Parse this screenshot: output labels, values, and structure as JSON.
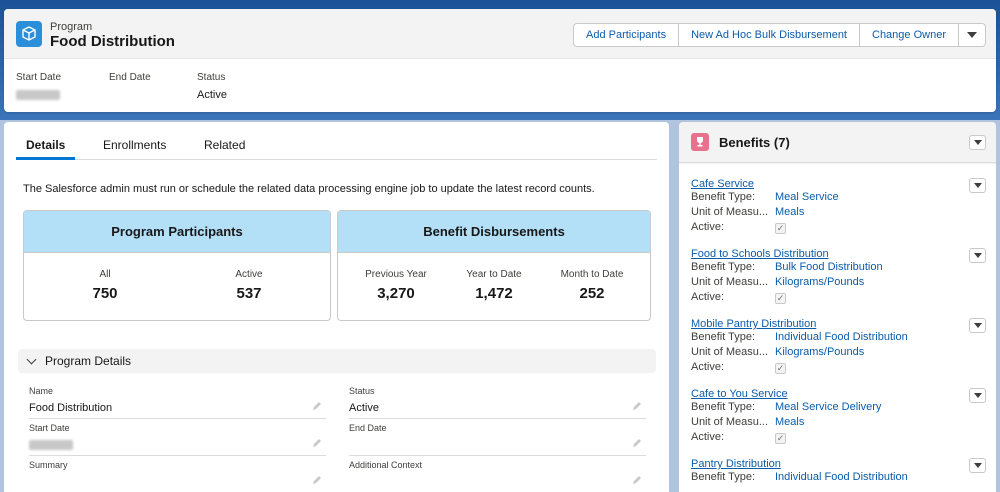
{
  "header": {
    "object_type": "Program",
    "record_name": "Food Distribution",
    "actions": [
      "Add Participants",
      "New Ad Hoc Bulk Disbursement",
      "Change Owner"
    ],
    "highlights": [
      {
        "label": "Start Date",
        "value": ""
      },
      {
        "label": "End Date",
        "value": ""
      },
      {
        "label": "Status",
        "value": "Active"
      }
    ]
  },
  "tabs": [
    "Details",
    "Enrollments",
    "Related"
  ],
  "notice": "The Salesforce admin must run or schedule the related data processing engine job to update the latest record counts.",
  "participants": {
    "title": "Program Participants",
    "stats": [
      {
        "label": "All",
        "value": "750"
      },
      {
        "label": "Active",
        "value": "537"
      }
    ]
  },
  "disbursements": {
    "title": "Benefit Disbursements",
    "stats": [
      {
        "label": "Previous Year",
        "value": "3,270"
      },
      {
        "label": "Year to Date",
        "value": "1,472"
      },
      {
        "label": "Month to Date",
        "value": "252"
      }
    ]
  },
  "details": {
    "section_title": "Program Details",
    "fields": [
      {
        "label": "Name",
        "value": "Food Distribution"
      },
      {
        "label": "Status",
        "value": "Active"
      },
      {
        "label": "Start Date",
        "value": ""
      },
      {
        "label": "End Date",
        "value": ""
      },
      {
        "label": "Summary",
        "value": ""
      },
      {
        "label": "Additional Context",
        "value": ""
      }
    ]
  },
  "benefits": {
    "title": "Benefits (7)",
    "labels": {
      "type": "Benefit Type:",
      "unit": "Unit of Measu...",
      "active": "Active:"
    },
    "items": [
      {
        "name": "Cafe Service",
        "type": "Meal Service",
        "unit": "Meals",
        "active": true
      },
      {
        "name": "Food to Schools Distribution",
        "type": "Bulk Food Distribution",
        "unit": "Kilograms/Pounds",
        "active": true
      },
      {
        "name": "Mobile Pantry Distribution",
        "type": "Individual Food Distribution",
        "unit": "Kilograms/Pounds",
        "active": true
      },
      {
        "name": "Cafe to You Service",
        "type": "Meal Service Delivery",
        "unit": "Meals",
        "active": true
      },
      {
        "name": "Pantry Distribution",
        "type": "Individual Food Distribution",
        "unit": "",
        "active": true
      }
    ]
  },
  "colors": {
    "accent": "#0176d3",
    "link": "#0b5cab",
    "stat_header": "#b3dff7",
    "program_icon": "#2a8fd8",
    "benefit_icon": "#e8718e"
  },
  "icons": {
    "program": "program-icon",
    "benefits": "trophy-icon",
    "edit": "pencil-icon",
    "menu": "chevron-down-icon"
  }
}
